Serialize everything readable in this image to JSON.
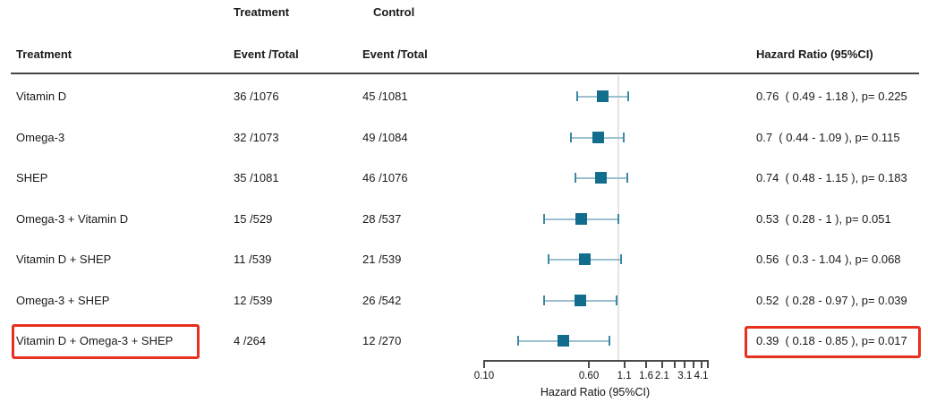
{
  "header": {
    "group_treatment": "Treatment",
    "group_control": "Control",
    "col_treatment": "Treatment",
    "col_event_total_treatment": "Event /Total",
    "col_event_total_control": "Event /Total",
    "col_hazard_ratio": "Hazard Ratio (95%CI)"
  },
  "colors": {
    "marker_square": "#136d8d",
    "ci_whisker": "#9cc0cf",
    "ci_cap": "#3a89a6",
    "reference_line": "#e4e4e4",
    "highlight_red": "#e7301d",
    "divider": "#454545",
    "text": "#1a1a1a"
  },
  "chart_data": {
    "type": "scatter",
    "variant": "forest-plot",
    "xlabel": "Hazard Ratio (95%CI)",
    "x_scale": "log",
    "x_range": [
      0.1,
      4.75
    ],
    "reference_line": 1.0,
    "x_ticks": [
      0.1,
      0.6,
      1.1,
      1.6,
      2.1,
      3.1,
      4.1
    ],
    "x_tick_labels": [
      "0.10",
      "0.60",
      "1.1",
      "1.6",
      "2.1",
      "3.1",
      "4.1"
    ],
    "x_minor_ticks": [
      2.6,
      3.6,
      4.6
    ],
    "grid": "off",
    "rows": [
      {
        "treatment": "Vitamin D",
        "treatment_event_total": "36 /1076",
        "control_event_total": "45 /1081",
        "hr": 0.76,
        "ci_low": 0.49,
        "ci_high": 1.18,
        "p": 0.225,
        "hr_label": "0.76  ( 0.49 - 1.18 ), p= 0.225",
        "highlighted": false
      },
      {
        "treatment": "Omega-3",
        "treatment_event_total": "32 /1073",
        "control_event_total": "49 /1084",
        "hr": 0.7,
        "ci_low": 0.44,
        "ci_high": 1.09,
        "p": 0.115,
        "hr_label": "0.7  ( 0.44 - 1.09 ), p= 0.115",
        "highlighted": false
      },
      {
        "treatment": "SHEP",
        "treatment_event_total": "35 /1081",
        "control_event_total": "46 /1076",
        "hr": 0.74,
        "ci_low": 0.48,
        "ci_high": 1.15,
        "p": 0.183,
        "hr_label": "0.74  ( 0.48 - 1.15 ), p= 0.183",
        "highlighted": false
      },
      {
        "treatment": "Omega-3 + Vitamin D",
        "treatment_event_total": "15 /529",
        "control_event_total": "28 /537",
        "hr": 0.53,
        "ci_low": 0.28,
        "ci_high": 1.0,
        "p": 0.051,
        "hr_label": "0.53  ( 0.28 - 1 ), p= 0.051",
        "highlighted": false
      },
      {
        "treatment": "Vitamin D + SHEP",
        "treatment_event_total": "11 /539",
        "control_event_total": "21 /539",
        "hr": 0.56,
        "ci_low": 0.3,
        "ci_high": 1.04,
        "p": 0.068,
        "hr_label": "0.56  ( 0.3 - 1.04 ), p= 0.068",
        "highlighted": false
      },
      {
        "treatment": "Omega-3 + SHEP",
        "treatment_event_total": "12 /539",
        "control_event_total": "26 /542",
        "hr": 0.52,
        "ci_low": 0.28,
        "ci_high": 0.97,
        "p": 0.039,
        "hr_label": "0.52  ( 0.28 - 0.97 ), p= 0.039",
        "highlighted": false
      },
      {
        "treatment": "Vitamin D + Omega-3 + SHEP",
        "treatment_event_total": "4 /264",
        "control_event_total": "12 /270",
        "hr": 0.39,
        "ci_low": 0.18,
        "ci_high": 0.85,
        "p": 0.017,
        "hr_label": "0.39  ( 0.18 - 0.85 ), p= 0.017",
        "highlighted": true
      }
    ]
  }
}
